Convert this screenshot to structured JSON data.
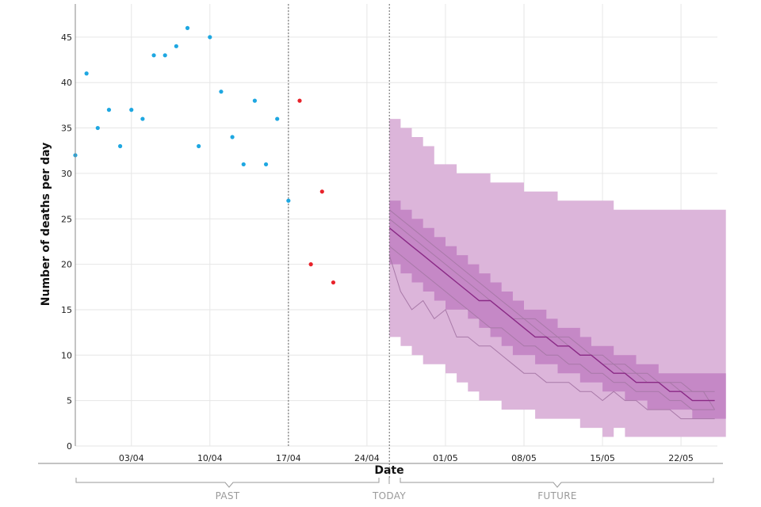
{
  "chart_data": {
    "type": "scatter",
    "title": "",
    "xlabel": "Date",
    "ylabel": "Number of deaths per day",
    "ylim": [
      0,
      48
    ],
    "y_ticks": [
      0,
      5,
      10,
      15,
      20,
      25,
      30,
      35,
      40,
      45
    ],
    "x_range_days": [
      0,
      57.5
    ],
    "x_ticks": [
      {
        "day": 5,
        "label": "03/04"
      },
      {
        "day": 12,
        "label": "10/04"
      },
      {
        "day": 19,
        "label": "17/04"
      },
      {
        "day": 26,
        "label": "24/04"
      },
      {
        "day": 33,
        "label": "01/05"
      },
      {
        "day": 40,
        "label": "08/05"
      },
      {
        "day": 47,
        "label": "15/05"
      },
      {
        "day": 54,
        "label": "22/05"
      }
    ],
    "start_date": "29/03",
    "marker_days": {
      "cutoff": 19,
      "today": 28
    },
    "sections": {
      "past": "PAST",
      "today": "TODAY",
      "future": "FUTURE"
    },
    "colors": {
      "observed": "#1ea7e1",
      "recent": "#e8222a",
      "band_outer": "#dcb5da",
      "band_inner": "#c588c6",
      "median": "#8a2a86",
      "trajectory": "#a879a8",
      "grid": "#e6e6e6",
      "axis": "#888888"
    },
    "series": [
      {
        "name": "observed",
        "points": [
          [
            0,
            32
          ],
          [
            1,
            41
          ],
          [
            2,
            35
          ],
          [
            3,
            37
          ],
          [
            4,
            33
          ],
          [
            5,
            37
          ],
          [
            6,
            36
          ],
          [
            7,
            43
          ],
          [
            8,
            43
          ],
          [
            9,
            44
          ],
          [
            10,
            46
          ],
          [
            11,
            33
          ],
          [
            12,
            45
          ],
          [
            13,
            39
          ],
          [
            14,
            34
          ],
          [
            15,
            31
          ],
          [
            16,
            38
          ],
          [
            17,
            31
          ],
          [
            18,
            36
          ],
          [
            19,
            27
          ]
        ]
      },
      {
        "name": "recent",
        "points": [
          [
            20,
            38
          ],
          [
            21,
            20
          ],
          [
            22,
            28
          ],
          [
            23,
            18
          ]
        ]
      }
    ],
    "forecast": {
      "days": [
        28,
        29,
        30,
        31,
        32,
        33,
        34,
        35,
        36,
        37,
        38,
        39,
        40,
        41,
        42,
        43,
        44,
        45,
        46,
        47,
        48,
        49,
        50,
        51,
        52,
        53,
        54,
        55,
        56,
        57
      ],
      "outer_upper": [
        36,
        35,
        34,
        33,
        31,
        31,
        30,
        30,
        30,
        29,
        29,
        29,
        28,
        28,
        28,
        27,
        27,
        27,
        27,
        27,
        26,
        26,
        26,
        26,
        26,
        26,
        26,
        26,
        26,
        26
      ],
      "outer_lower": [
        12,
        11,
        10,
        9,
        9,
        8,
        7,
        6,
        5,
        5,
        4,
        4,
        4,
        3,
        3,
        3,
        3,
        2,
        2,
        1,
        2,
        1,
        1,
        1,
        1,
        1,
        1,
        1,
        1,
        1
      ],
      "inner_upper": [
        27,
        26,
        25,
        24,
        23,
        22,
        21,
        20,
        19,
        18,
        17,
        16,
        15,
        15,
        14,
        13,
        13,
        12,
        11,
        11,
        10,
        10,
        9,
        9,
        8,
        8,
        8,
        8,
        8,
        8
      ],
      "inner_lower": [
        20,
        19,
        18,
        17,
        16,
        15,
        15,
        14,
        13,
        12,
        11,
        10,
        10,
        9,
        9,
        8,
        8,
        7,
        7,
        6,
        6,
        5,
        5,
        4,
        4,
        4,
        4,
        3,
        3,
        3
      ],
      "median": [
        24,
        23,
        22,
        21,
        20,
        19,
        18,
        17,
        16,
        16,
        15,
        14,
        13,
        12,
        12,
        11,
        11,
        10,
        10,
        9,
        8,
        8,
        7,
        7,
        7,
        6,
        6,
        5,
        5,
        5
      ],
      "trajectories": [
        [
          26,
          25,
          24,
          23,
          22,
          21,
          20,
          19,
          18,
          17,
          16,
          15,
          14,
          14,
          13,
          12,
          12,
          11,
          10,
          10,
          9,
          9,
          8,
          8,
          7,
          7,
          7,
          6,
          6,
          6
        ],
        [
          22,
          21,
          20,
          19,
          18,
          17,
          16,
          15,
          14,
          13,
          13,
          12,
          11,
          11,
          10,
          10,
          9,
          9,
          8,
          8,
          7,
          7,
          6,
          6,
          6,
          5,
          5,
          4,
          4,
          4
        ],
        [
          21,
          17,
          15,
          16,
          14,
          15,
          12,
          12,
          11,
          11,
          10,
          9,
          8,
          8,
          7,
          7,
          7,
          6,
          6,
          5,
          6,
          5,
          5,
          4,
          4,
          4,
          3,
          3,
          3,
          3
        ],
        [
          25,
          24,
          23,
          22,
          21,
          20,
          19,
          18,
          17,
          16,
          15,
          14,
          14,
          13,
          12,
          12,
          11,
          10,
          10,
          9,
          9,
          8,
          8,
          7,
          7,
          7,
          6,
          6,
          6,
          4
        ]
      ]
    }
  }
}
